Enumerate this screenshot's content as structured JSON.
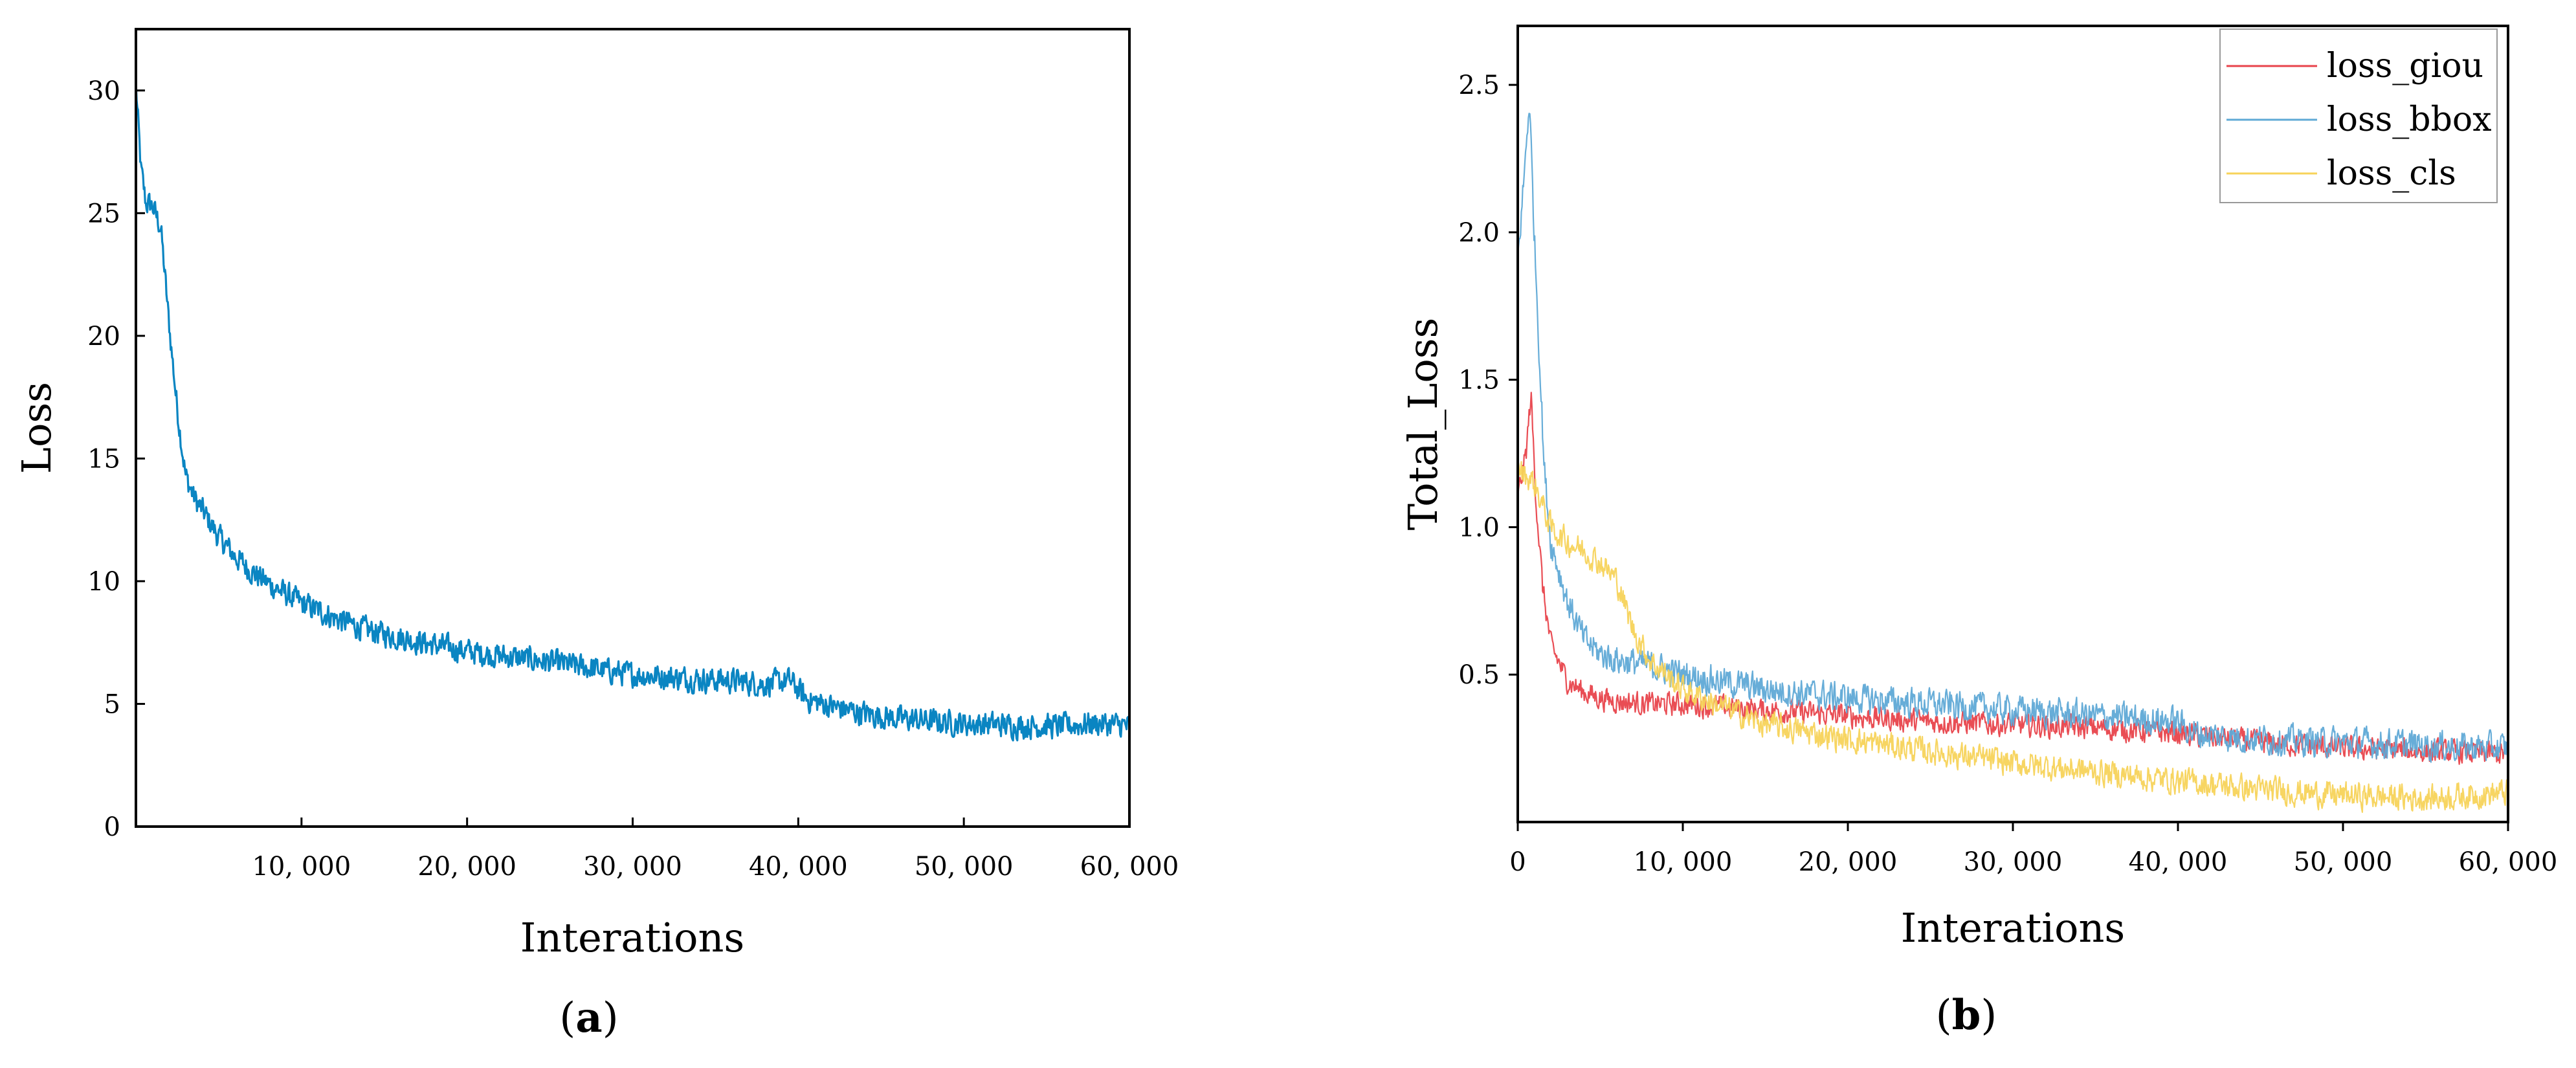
{
  "colors": {
    "panel_a_line": "#0a85c2",
    "loss_giou": "#e8434b",
    "loss_bbox": "#5fa9d6",
    "loss_cls": "#f7d35a",
    "axis": "#000000"
  },
  "chart_data": [
    {
      "type": "line",
      "panel": "a",
      "caption_open": "(",
      "caption_letter": "a",
      "caption_close": ")",
      "xlabel": "Interations",
      "ylabel": "Loss",
      "xlim": [
        0,
        60000
      ],
      "ylim": [
        0,
        32.5
      ],
      "xticks": [
        10000,
        20000,
        30000,
        40000,
        50000,
        60000
      ],
      "xtick_labels": [
        "10, 000",
        "20, 000",
        "30, 000",
        "40, 000",
        "50, 000",
        "60, 000"
      ],
      "yticks": [
        0,
        5,
        10,
        15,
        20,
        25,
        30
      ],
      "ytick_labels": [
        "0",
        "5",
        "10",
        "15",
        "20",
        "25",
        "30"
      ],
      "legend": null,
      "series": [
        {
          "name": "Loss",
          "color_key": "panel_a_line",
          "noise": 0.45,
          "points": [
            [
              0,
              30.2
            ],
            [
              300,
              26.8
            ],
            [
              600,
              25.4
            ],
            [
              1000,
              25.3
            ],
            [
              1500,
              24.4
            ],
            [
              2000,
              20.5
            ],
            [
              2500,
              17.0
            ],
            [
              3000,
              14.3
            ],
            [
              3500,
              13.4
            ],
            [
              4000,
              12.9
            ],
            [
              5000,
              11.8
            ],
            [
              6000,
              11.0
            ],
            [
              7000,
              10.4
            ],
            [
              8000,
              9.9
            ],
            [
              9000,
              9.5
            ],
            [
              10000,
              9.1
            ],
            [
              12000,
              8.5
            ],
            [
              14000,
              8.0
            ],
            [
              16000,
              7.7
            ],
            [
              18000,
              7.4
            ],
            [
              20000,
              7.15
            ],
            [
              22000,
              6.95
            ],
            [
              24000,
              6.8
            ],
            [
              26000,
              6.6
            ],
            [
              28000,
              6.4
            ],
            [
              30000,
              6.2
            ],
            [
              32000,
              6.1
            ],
            [
              34000,
              6.0
            ],
            [
              36000,
              5.95
            ],
            [
              38000,
              5.8
            ],
            [
              39500,
              5.95
            ],
            [
              40500,
              5.2
            ],
            [
              42000,
              4.9
            ],
            [
              44000,
              4.6
            ],
            [
              46000,
              4.4
            ],
            [
              48000,
              4.3
            ],
            [
              50000,
              4.2
            ],
            [
              52000,
              4.15
            ],
            [
              54000,
              4.1
            ],
            [
              56000,
              4.1
            ],
            [
              58000,
              4.2
            ],
            [
              60000,
              4.1
            ]
          ]
        }
      ]
    },
    {
      "type": "line",
      "panel": "b",
      "caption_open": "(",
      "caption_letter": "b",
      "caption_close": ")",
      "xlabel": "Interations",
      "ylabel": "Total_Loss",
      "xlim": [
        0,
        60000
      ],
      "ylim": [
        0,
        2.7
      ],
      "xticks": [
        0,
        10000,
        20000,
        30000,
        40000,
        50000,
        60000
      ],
      "xtick_labels": [
        "0",
        "10, 000",
        "20, 000",
        "30, 000",
        "40, 000",
        "50, 000",
        "60, 000"
      ],
      "yticks": [
        0.5,
        1.0,
        1.5,
        2.0,
        2.5
      ],
      "ytick_labels": [
        "0.5",
        "1.0",
        "1.5",
        "2.0",
        "2.5"
      ],
      "legend": "top-right",
      "series": [
        {
          "name": "loss_giou",
          "color_key": "loss_giou",
          "noise": 0.035,
          "points": [
            [
              0,
              1.1
            ],
            [
              500,
              1.25
            ],
            [
              800,
              1.45
            ],
            [
              1100,
              1.1
            ],
            [
              1500,
              0.8
            ],
            [
              2000,
              0.6
            ],
            [
              3000,
              0.48
            ],
            [
              4000,
              0.44
            ],
            [
              5000,
              0.42
            ],
            [
              6000,
              0.41
            ],
            [
              8000,
              0.4
            ],
            [
              10000,
              0.4
            ],
            [
              15000,
              0.38
            ],
            [
              20000,
              0.36
            ],
            [
              25000,
              0.34
            ],
            [
              30000,
              0.33
            ],
            [
              35000,
              0.32
            ],
            [
              40000,
              0.3
            ],
            [
              45000,
              0.27
            ],
            [
              50000,
              0.25
            ],
            [
              55000,
              0.24
            ],
            [
              60000,
              0.23
            ]
          ]
        },
        {
          "name": "loss_bbox",
          "color_key": "loss_bbox",
          "noise": 0.045,
          "points": [
            [
              0,
              1.9
            ],
            [
              400,
              2.2
            ],
            [
              700,
              2.45
            ],
            [
              1000,
              2.0
            ],
            [
              1300,
              1.6
            ],
            [
              1600,
              1.2
            ],
            [
              2000,
              0.95
            ],
            [
              3000,
              0.75
            ],
            [
              4000,
              0.62
            ],
            [
              5000,
              0.57
            ],
            [
              6000,
              0.55
            ],
            [
              8000,
              0.53
            ],
            [
              10000,
              0.5
            ],
            [
              15000,
              0.45
            ],
            [
              20000,
              0.42
            ],
            [
              25000,
              0.4
            ],
            [
              30000,
              0.38
            ],
            [
              35000,
              0.36
            ],
            [
              40000,
              0.34
            ],
            [
              41000,
              0.3
            ],
            [
              45000,
              0.28
            ],
            [
              50000,
              0.27
            ],
            [
              55000,
              0.26
            ],
            [
              60000,
              0.25
            ]
          ]
        },
        {
          "name": "loss_cls",
          "color_key": "loss_cls",
          "noise": 0.04,
          "points": [
            [
              0,
              1.2
            ],
            [
              1000,
              1.15
            ],
            [
              2000,
              1.0
            ],
            [
              3000,
              0.95
            ],
            [
              4000,
              0.92
            ],
            [
              5000,
              0.88
            ],
            [
              6000,
              0.82
            ],
            [
              7000,
              0.65
            ],
            [
              8000,
              0.55
            ],
            [
              10000,
              0.45
            ],
            [
              12000,
              0.4
            ],
            [
              15000,
              0.33
            ],
            [
              20000,
              0.28
            ],
            [
              25000,
              0.24
            ],
            [
              30000,
              0.2
            ],
            [
              35000,
              0.17
            ],
            [
              40000,
              0.14
            ],
            [
              45000,
              0.11
            ],
            [
              50000,
              0.09
            ],
            [
              55000,
              0.08
            ],
            [
              60000,
              0.1
            ]
          ]
        }
      ]
    }
  ]
}
